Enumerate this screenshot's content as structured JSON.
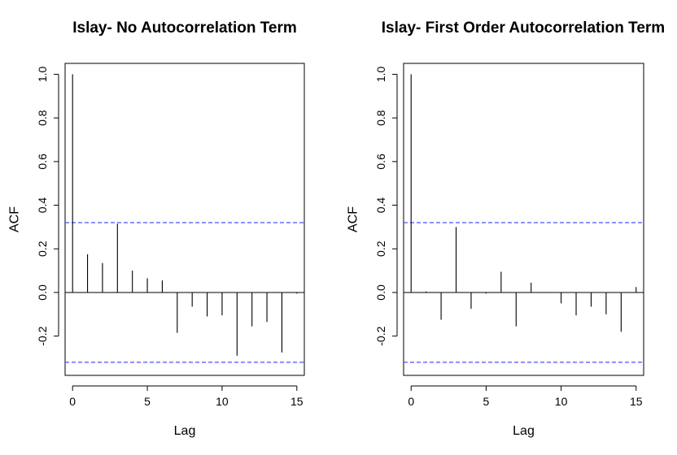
{
  "chart_data": [
    {
      "type": "bar",
      "title": "Islay- No Autocorrelation Term",
      "xlabel": "Lag",
      "ylabel": "ACF",
      "xlim": [
        -0.5,
        15.5
      ],
      "ylim": [
        -0.38,
        1.05
      ],
      "x_ticks": [
        0,
        5,
        10,
        15
      ],
      "x_tick_labels": [
        "0",
        "5",
        "10",
        "15"
      ],
      "y_ticks": [
        -0.2,
        0.0,
        0.2,
        0.4,
        0.6,
        0.8,
        1.0
      ],
      "y_tick_labels": [
        "-0.2",
        "0.0",
        "0.2",
        "0.4",
        "0.6",
        "0.8",
        "1.0"
      ],
      "confidence_bound": 0.32,
      "colors": {
        "bound": "#4d4dff",
        "spike": "#000000"
      },
      "lags": [
        0,
        1,
        2,
        3,
        4,
        5,
        6,
        7,
        8,
        9,
        10,
        11,
        12,
        13,
        14,
        15
      ],
      "values": [
        1.0,
        0.175,
        0.135,
        0.315,
        0.1,
        0.065,
        0.055,
        -0.185,
        -0.065,
        -0.11,
        -0.105,
        -0.29,
        -0.155,
        -0.135,
        -0.275,
        -0.005
      ]
    },
    {
      "type": "bar",
      "title": "Islay- First Order Autocorrelation Term",
      "xlabel": "Lag",
      "ylabel": "ACF",
      "xlim": [
        -0.5,
        15.5
      ],
      "ylim": [
        -0.38,
        1.05
      ],
      "x_ticks": [
        0,
        5,
        10,
        15
      ],
      "x_tick_labels": [
        "0",
        "5",
        "10",
        "15"
      ],
      "y_ticks": [
        -0.2,
        0.0,
        0.2,
        0.4,
        0.6,
        0.8,
        1.0
      ],
      "y_tick_labels": [
        "-0.2",
        "0.0",
        "0.2",
        "0.4",
        "0.6",
        "0.8",
        "1.0"
      ],
      "confidence_bound": 0.32,
      "colors": {
        "bound": "#4d4dff",
        "spike": "#000000"
      },
      "lags": [
        0,
        1,
        2,
        3,
        4,
        5,
        6,
        7,
        8,
        9,
        10,
        11,
        12,
        13,
        14,
        15
      ],
      "values": [
        1.0,
        0.005,
        -0.125,
        0.3,
        -0.075,
        -0.005,
        0.095,
        -0.155,
        0.045,
        0.0,
        -0.05,
        -0.105,
        -0.065,
        -0.1,
        -0.18,
        0.025
      ]
    }
  ]
}
